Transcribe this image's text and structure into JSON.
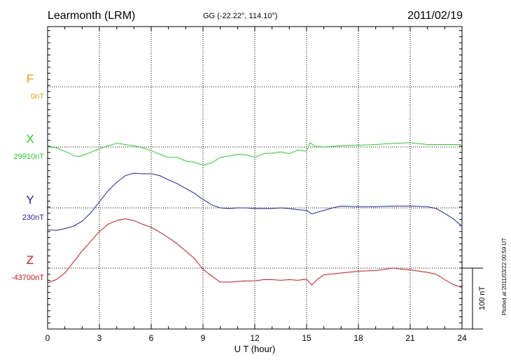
{
  "header": {
    "station": "Learmonth (LRM)",
    "coords": "GG (-22.22°, 114.10°)",
    "date": "2011/02/19"
  },
  "side_note": "Plotted at 2011/03/22 00:59 UT",
  "scale_label": "100 nT",
  "chart_data": {
    "type": "line",
    "xlabel": "U T (hour)",
    "x_ticks": [
      0,
      3,
      6,
      9,
      12,
      15,
      18,
      21,
      24
    ],
    "xlim": [
      0,
      24
    ],
    "grid": true,
    "scale_bar_nT": 100,
    "series": [
      {
        "name": "F",
        "baseline_label": "0nT",
        "color": "#f5a000",
        "x": [],
        "y": []
      },
      {
        "name": "X",
        "baseline_label": "29910nT",
        "color": "#22dd22",
        "x": [
          0,
          0.5,
          1,
          1.5,
          1.8,
          2.2,
          3,
          3.5,
          4,
          4.5,
          5,
          5.5,
          6,
          6.5,
          7,
          7.5,
          8,
          8.5,
          9,
          9.5,
          10,
          10.5,
          11,
          11.5,
          12,
          12.5,
          13,
          13.5,
          14,
          14.5,
          15,
          15.2,
          15.5,
          16,
          16.5,
          17,
          18,
          19,
          20,
          21,
          22,
          23,
          24
        ],
        "y": [
          29910,
          29909,
          29903,
          29896,
          29894,
          29898,
          29907,
          29912,
          29916,
          29914,
          29912,
          29909,
          29904,
          29898,
          29893,
          29893,
          29887,
          29885,
          29880,
          29884,
          29893,
          29895,
          29898,
          29897,
          29893,
          29899,
          29900,
          29902,
          29899,
          29905,
          29903,
          29917,
          29911,
          29910,
          29911,
          29912,
          29913,
          29914,
          29916,
          29917,
          29914,
          29914,
          29914
        ]
      },
      {
        "name": "Y",
        "baseline_label": "230nT",
        "color": "#1f1fcc",
        "x": [
          0,
          0.5,
          1,
          1.5,
          2,
          2.5,
          3,
          3.5,
          4,
          4.5,
          5,
          5.5,
          6,
          6.5,
          7,
          7.5,
          8,
          8.5,
          9,
          9.5,
          10,
          10.5,
          11,
          11.5,
          12,
          12.5,
          13,
          13.5,
          14,
          14.5,
          15,
          15.3,
          16,
          16.5,
          17,
          18,
          19,
          20,
          21,
          22,
          22.5,
          23,
          23.5,
          24
        ],
        "y": [
          194,
          193,
          196,
          200,
          208,
          222,
          240,
          258,
          272,
          283,
          287,
          286,
          286,
          283,
          276,
          270,
          262,
          254,
          244,
          235,
          230,
          229,
          230,
          230,
          229,
          229,
          229,
          230,
          229,
          227,
          226,
          220,
          226,
          230,
          233,
          232,
          232,
          233,
          233,
          232,
          229,
          221,
          212,
          200
        ]
      },
      {
        "name": "Z",
        "baseline_label": "-43700nT",
        "color": "#ee1111",
        "x": [
          0,
          0.5,
          1,
          1.5,
          2,
          2.5,
          3,
          3.5,
          4,
          4.5,
          5,
          5.5,
          6,
          6.5,
          7,
          7.5,
          8,
          8.5,
          9,
          9.5,
          10,
          10.5,
          11,
          11.5,
          12,
          12.5,
          13,
          13.5,
          14,
          14.5,
          15,
          15.3,
          15.6,
          16,
          17,
          18,
          19,
          20,
          21,
          22,
          22.5,
          23,
          23.5,
          24
        ],
        "y": [
          -43724,
          -43719,
          -43708,
          -43690,
          -43672,
          -43656,
          -43640,
          -43628,
          -43622,
          -43619,
          -43622,
          -43628,
          -43633,
          -43641,
          -43650,
          -43660,
          -43672,
          -43684,
          -43702,
          -43713,
          -43723,
          -43723,
          -43722,
          -43721,
          -43721,
          -43719,
          -43719,
          -43720,
          -43719,
          -43720,
          -43718,
          -43728,
          -43719,
          -43711,
          -43708,
          -43705,
          -43704,
          -43700,
          -43703,
          -43707,
          -43710,
          -43719,
          -43727,
          -43732
        ]
      }
    ]
  }
}
